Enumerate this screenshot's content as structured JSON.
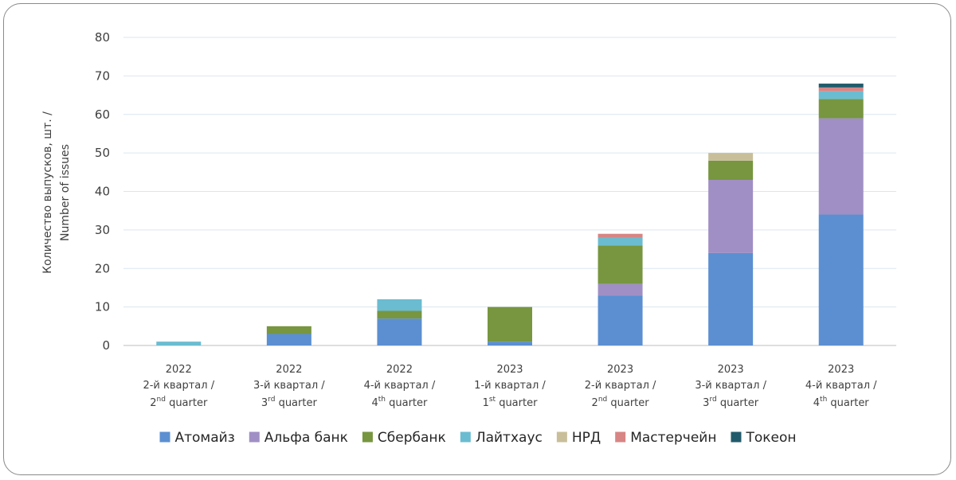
{
  "chart_data": {
    "type": "bar",
    "stacked": true,
    "ylabel_lines": [
      "Количество выпусков, шт. /",
      "Number of issues"
    ],
    "ylim": [
      0,
      80
    ],
    "yticks": [
      0,
      10,
      20,
      30,
      40,
      50,
      60,
      70,
      80
    ],
    "grid": true,
    "legend_position": "bottom",
    "categories": [
      [
        "2022",
        "2-й квартал /",
        [
          "2",
          "nd",
          " quarter"
        ]
      ],
      [
        "2022",
        "3-й квартал /",
        [
          "3",
          "rd",
          " quarter"
        ]
      ],
      [
        "2022",
        "4-й квартал /",
        [
          "4",
          "th",
          " quarter"
        ]
      ],
      [
        "2023",
        "1-й квартал /",
        [
          "1",
          "st",
          " quarter"
        ]
      ],
      [
        "2023",
        "2-й квартал /",
        [
          "2",
          "nd",
          " quarter"
        ]
      ],
      [
        "2023",
        "3-й квартал /",
        [
          "3",
          "rd",
          " quarter"
        ]
      ],
      [
        "2023",
        "4-й квартал /",
        [
          "4",
          "th",
          " quarter"
        ]
      ]
    ],
    "series": [
      {
        "name": "Атомайз",
        "color": "#5b8fd1",
        "values": [
          0,
          3,
          7,
          1,
          13,
          24,
          34
        ]
      },
      {
        "name": "Альфа банк",
        "color": "#a08fc4",
        "values": [
          0,
          0,
          0,
          0,
          3,
          19,
          25
        ]
      },
      {
        "name": "Сбербанк",
        "color": "#77963f",
        "values": [
          0,
          2,
          2,
          9,
          10,
          5,
          5
        ]
      },
      {
        "name": "Лайтхаус",
        "color": "#6bbcd0",
        "values": [
          1,
          0,
          3,
          0,
          2,
          0,
          2
        ]
      },
      {
        "name": "НРД",
        "color": "#c8bf9a",
        "values": [
          0,
          0,
          0,
          0,
          0,
          2,
          0
        ]
      },
      {
        "name": "Мастерчейн",
        "color": "#d88585",
        "values": [
          0,
          0,
          0,
          0,
          1,
          0,
          1
        ]
      },
      {
        "name": "Токеон",
        "color": "#215a6b",
        "values": [
          0,
          0,
          0,
          0,
          0,
          0,
          1
        ]
      }
    ]
  }
}
